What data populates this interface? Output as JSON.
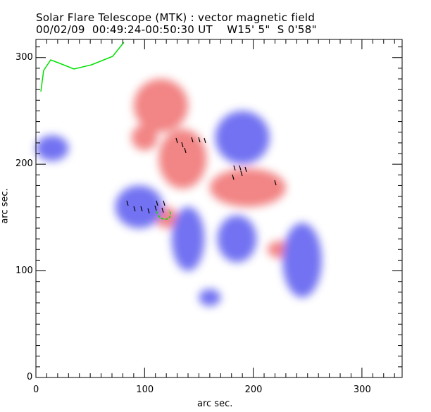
{
  "chart_data": {
    "type": "heatmap",
    "title": "Solar Flare Telescope (MTK) : vector magnetic field",
    "subtitle": "00/02/09  00:49:24-00:50:30 UT    W15' 5\"  S 0'58\"",
    "xlabel": "arc sec.",
    "ylabel": "arc sec.",
    "xlim": [
      0,
      337
    ],
    "ylim": [
      0,
      317
    ],
    "xticks": [
      "0",
      "100",
      "200",
      "300"
    ],
    "yticks": [
      "0",
      "100",
      "200",
      "300"
    ],
    "grid": false,
    "colors": {
      "positive": "#f07070",
      "negative": "#5a5af0",
      "contour": "#00e000",
      "vectors": "#000000"
    },
    "regions": [
      {
        "polarity": "positive",
        "x": 135,
        "y": 205,
        "rx": 22,
        "ry": 28
      },
      {
        "polarity": "positive",
        "x": 195,
        "y": 178,
        "rx": 35,
        "ry": 18
      },
      {
        "polarity": "positive",
        "x": 120,
        "y": 150,
        "rx": 10,
        "ry": 10
      },
      {
        "polarity": "positive",
        "x": 225,
        "y": 120,
        "rx": 12,
        "ry": 8
      },
      {
        "polarity": "positive",
        "x": 100,
        "y": 225,
        "rx": 12,
        "ry": 12
      },
      {
        "polarity": "positive",
        "x": 115,
        "y": 255,
        "rx": 25,
        "ry": 25
      },
      {
        "polarity": "negative",
        "x": 190,
        "y": 225,
        "rx": 25,
        "ry": 25
      },
      {
        "polarity": "negative",
        "x": 95,
        "y": 160,
        "rx": 22,
        "ry": 20
      },
      {
        "polarity": "negative",
        "x": 245,
        "y": 110,
        "rx": 18,
        "ry": 35
      },
      {
        "polarity": "negative",
        "x": 185,
        "y": 130,
        "rx": 18,
        "ry": 22
      },
      {
        "polarity": "negative",
        "x": 140,
        "y": 130,
        "rx": 15,
        "ry": 30
      },
      {
        "polarity": "negative",
        "x": 15,
        "y": 215,
        "rx": 15,
        "ry": 12
      },
      {
        "polarity": "negative",
        "x": 160,
        "y": 75,
        "rx": 10,
        "ry": 8
      }
    ]
  }
}
